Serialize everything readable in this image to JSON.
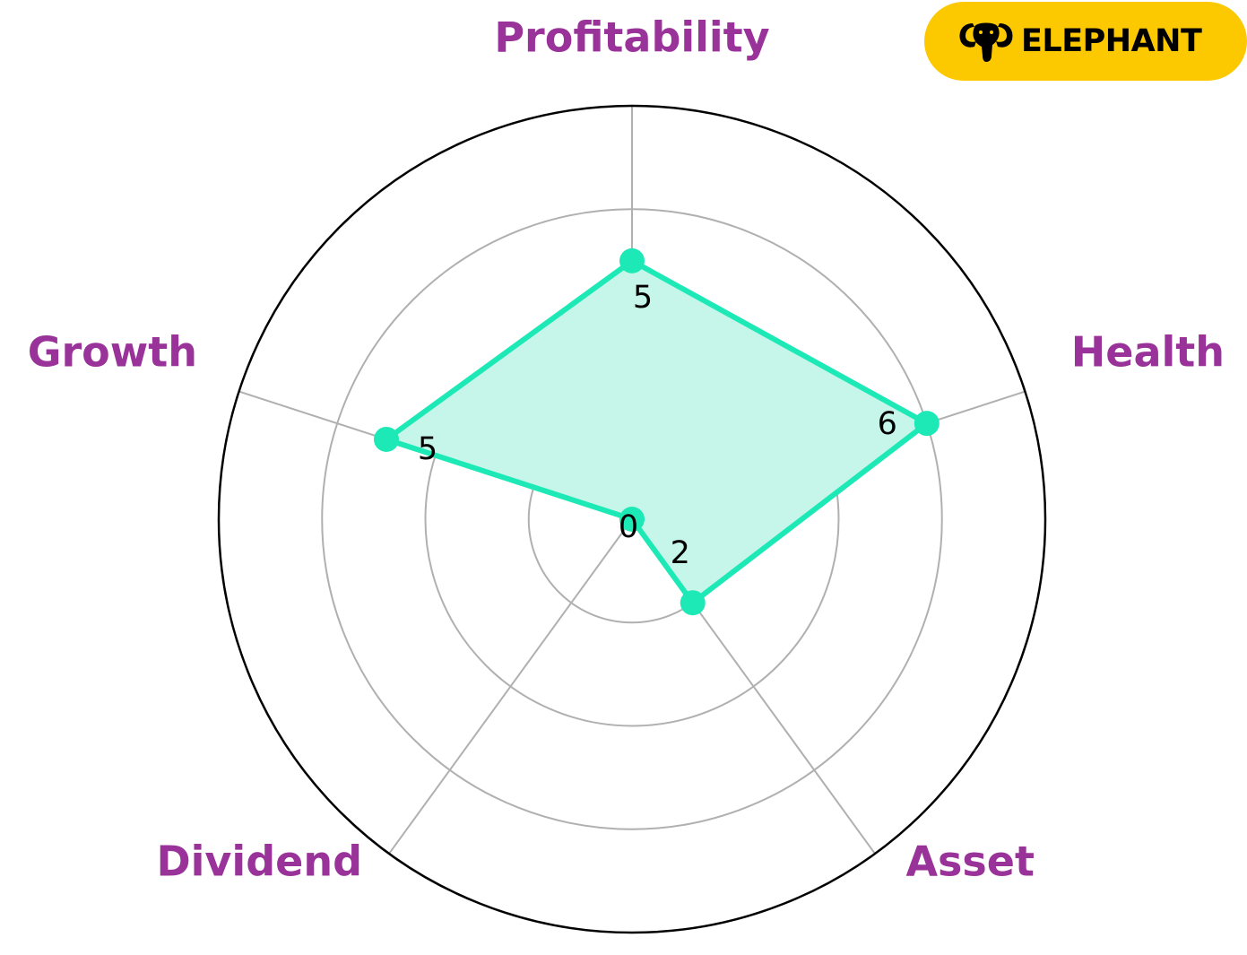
{
  "brand": {
    "name": "ELEPHANT",
    "icon": "elephant-icon",
    "background_color": "#fcc900"
  },
  "colors": {
    "series": "#1de9b6",
    "series_fill": "#c5f6e9",
    "axis_label": "#993399",
    "grid": "#b0b0b0",
    "outer_ring": "#000000"
  },
  "chart_data": {
    "type": "radar",
    "categories": [
      "Profitability",
      "Health",
      "Asset",
      "Dividend",
      "Growth"
    ],
    "series": [
      {
        "values": [
          5,
          6,
          2,
          0,
          5
        ],
        "value_labels": [
          "5",
          "6",
          "2",
          "0",
          "5"
        ]
      }
    ],
    "rlim": [
      0,
      8
    ],
    "grid": true,
    "legend": "none"
  }
}
